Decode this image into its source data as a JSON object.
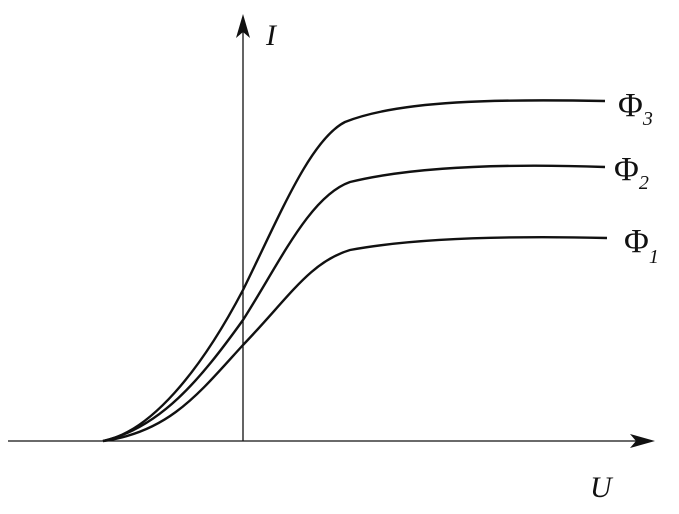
{
  "axes": {
    "y_label": "I",
    "x_label": "U"
  },
  "curves": [
    {
      "symbol": "Φ",
      "subscript": "3"
    },
    {
      "symbol": "Φ",
      "subscript": "2"
    },
    {
      "symbol": "Φ",
      "subscript": "1"
    }
  ]
}
